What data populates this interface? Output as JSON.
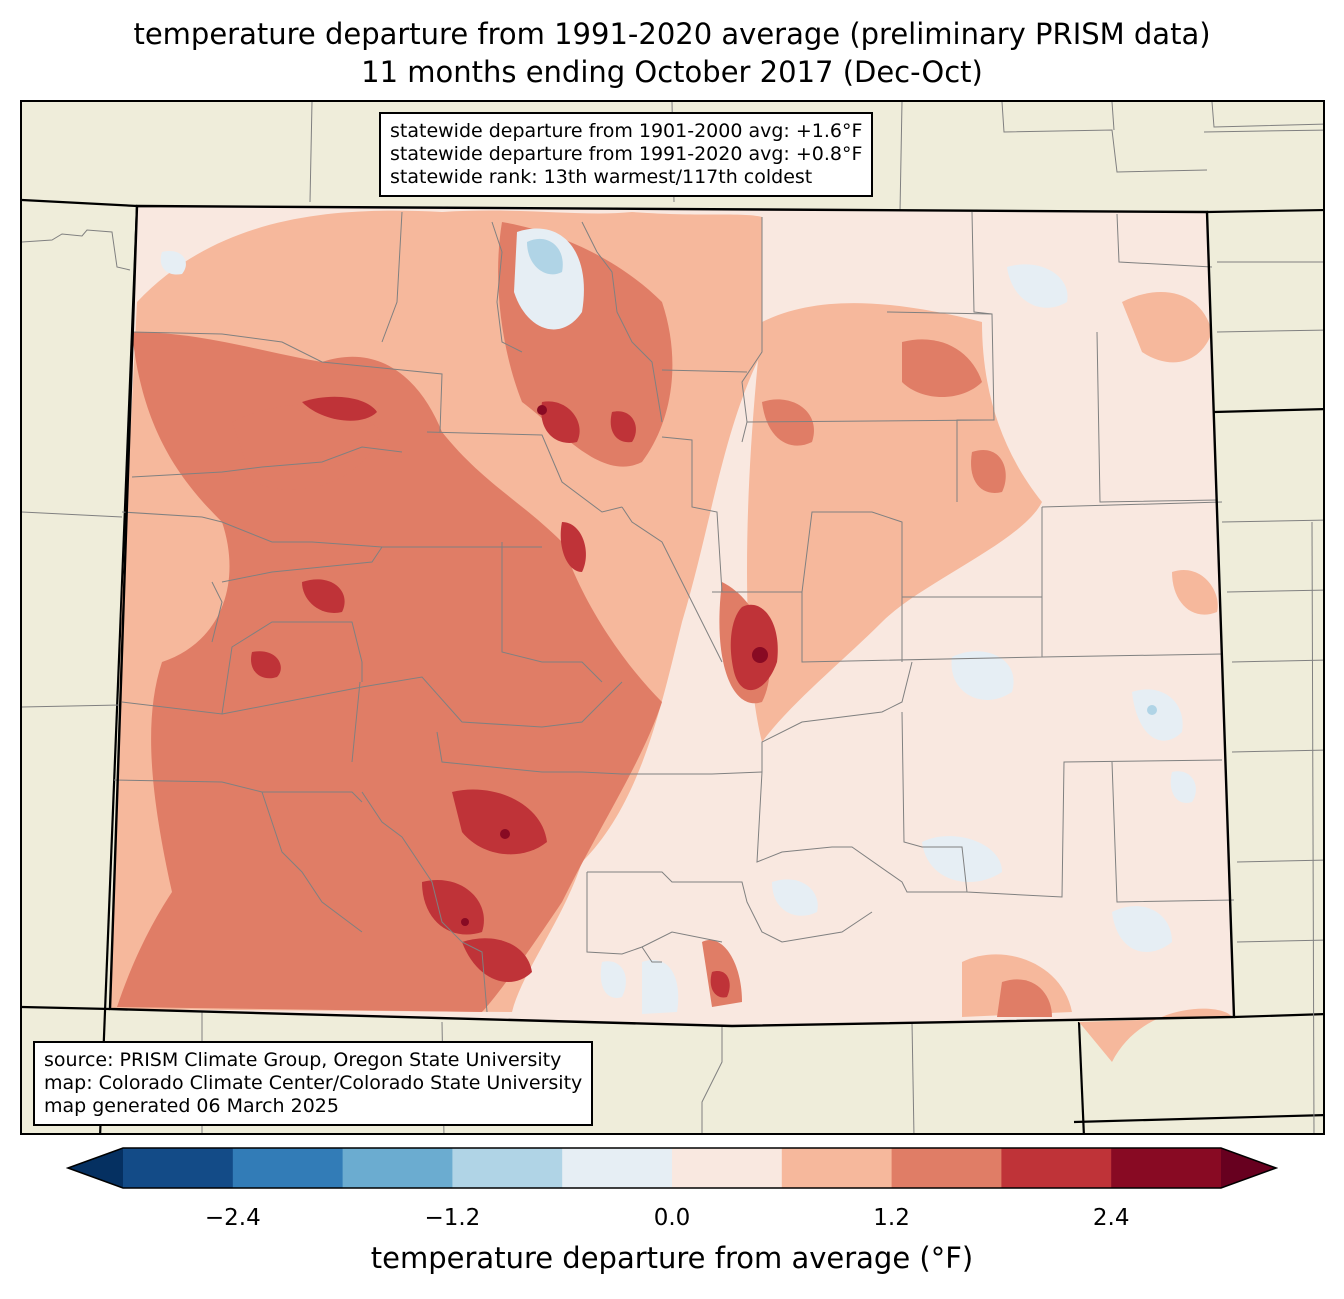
{
  "title_line1": "temperature departure from 1991-2020 average (preliminary PRISM data)",
  "title_line2": "11 months ending October 2017 (Dec-Oct)",
  "stats": {
    "line1": "statewide departure from 1901-2000 avg: +1.6°F",
    "line2": "statewide departure from 1991-2020 avg: +0.8°F",
    "line3": "statewide rank: 13th warmest/117th coldest"
  },
  "credits": {
    "line1": "source: PRISM Climate Group, Oregon State University",
    "line2": "map: Colorado Climate Center/Colorado State University",
    "line3": "map generated 06 March 2025"
  },
  "colorbar": {
    "label": "temperature departure from average (°F)",
    "ticks": [
      "−2.4",
      "−1.2",
      "0.0",
      "1.2",
      "2.4"
    ],
    "tick_values": [
      -2.4,
      -1.2,
      0.0,
      1.2,
      2.4
    ],
    "range": [
      -3.0,
      3.0
    ],
    "bin_width": 0.6,
    "colors": [
      "#053061",
      "#134b87",
      "#327cb7",
      "#6bacd0",
      "#b0d4e6",
      "#e6eef4",
      "#f9e8e0",
      "#f6b89c",
      "#e07d66",
      "#bf3338",
      "#880a23",
      "#67001f"
    ]
  },
  "map_colors": {
    "background": "#efedda",
    "state_fill": "#f9e8e0",
    "county_lines": "#808080"
  }
}
